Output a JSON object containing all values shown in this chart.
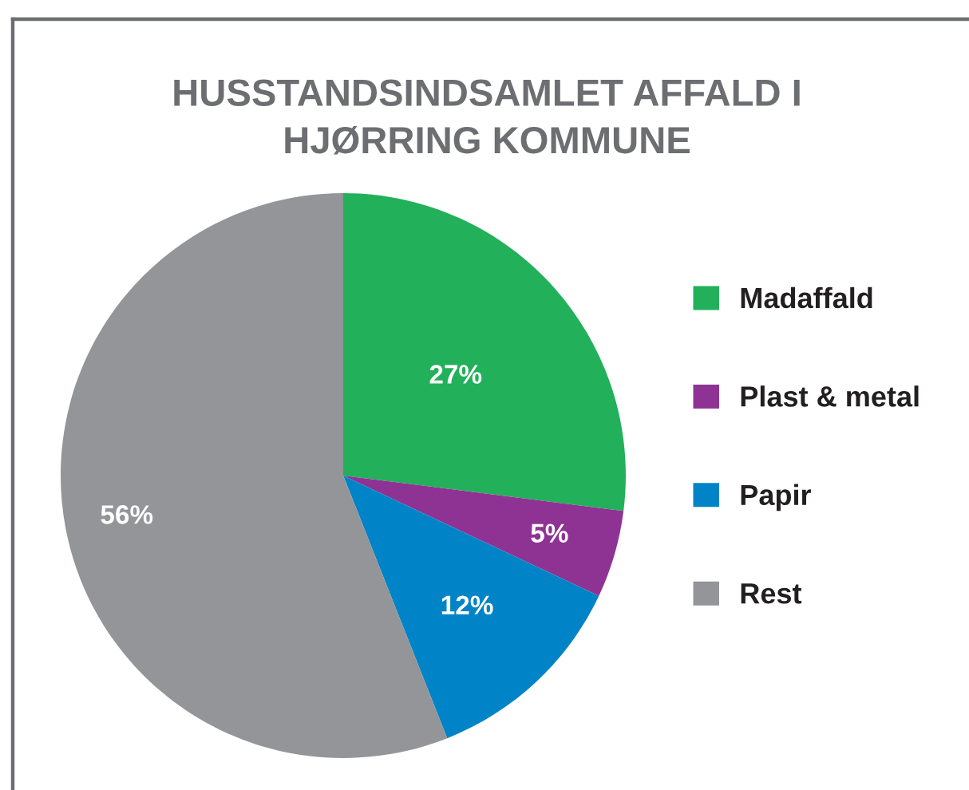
{
  "chart_data": {
    "type": "pie",
    "title": "HUSSTANDSINDSAMLET AFFALD I\nHJØRRING KOMMUNE",
    "categories": [
      "Madaffald",
      "Plast & metal",
      "Papir",
      "Rest"
    ],
    "values": [
      27,
      5,
      12,
      56
    ],
    "colors": [
      "#23b05a",
      "#8e3393",
      "#0084c7",
      "#939598"
    ],
    "value_labels": [
      "27%",
      "5%",
      "12%",
      "56%"
    ],
    "legend": "right"
  }
}
